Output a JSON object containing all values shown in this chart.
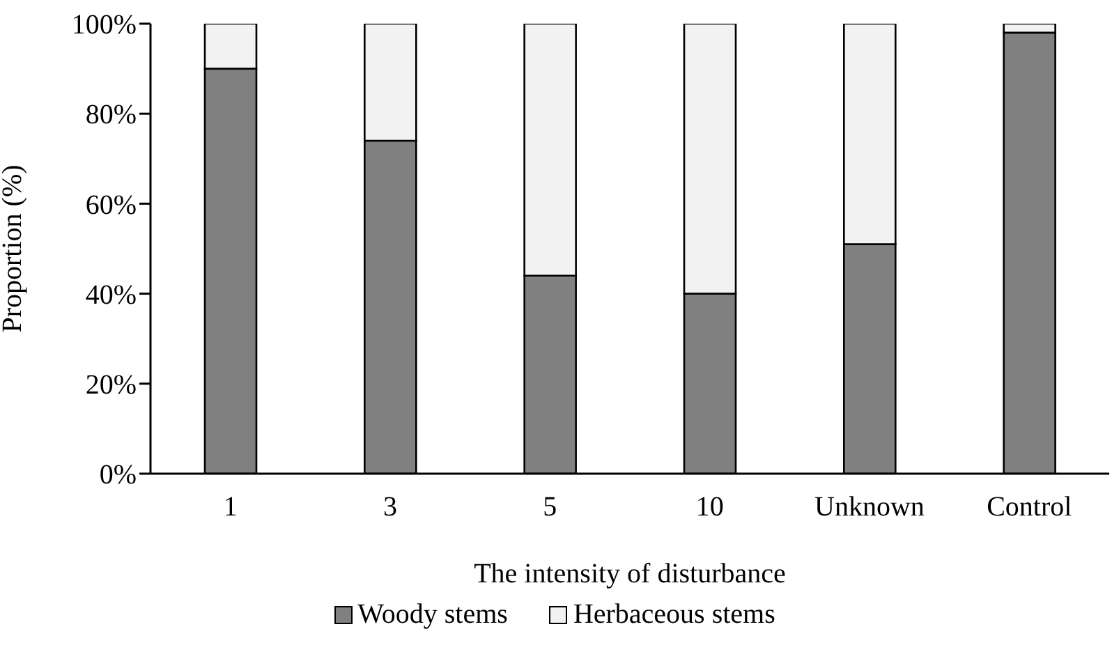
{
  "chart_data": {
    "type": "bar",
    "stacked": true,
    "xlabel": "The intensity of disturbance",
    "ylabel": "Proportion (%)",
    "categories": [
      "1",
      "3",
      "5",
      "10",
      "Unknown",
      "Control"
    ],
    "series": [
      {
        "name": "Woody stems",
        "color": "#808080",
        "values": [
          90,
          74,
          44,
          40,
          51,
          98
        ]
      },
      {
        "name": "Herbaceous stems",
        "color": "#f2f2f2",
        "values": [
          10,
          26,
          56,
          60,
          49,
          2
        ]
      }
    ],
    "ylim": [
      0,
      100
    ],
    "yticks": [
      {
        "value": 0,
        "label": "0%"
      },
      {
        "value": 20,
        "label": "20%"
      },
      {
        "value": 40,
        "label": "40%"
      },
      {
        "value": 60,
        "label": "60%"
      },
      {
        "value": 80,
        "label": "80%"
      },
      {
        "value": 100,
        "label": "100%"
      }
    ],
    "grid": false,
    "legend": "bottom"
  }
}
